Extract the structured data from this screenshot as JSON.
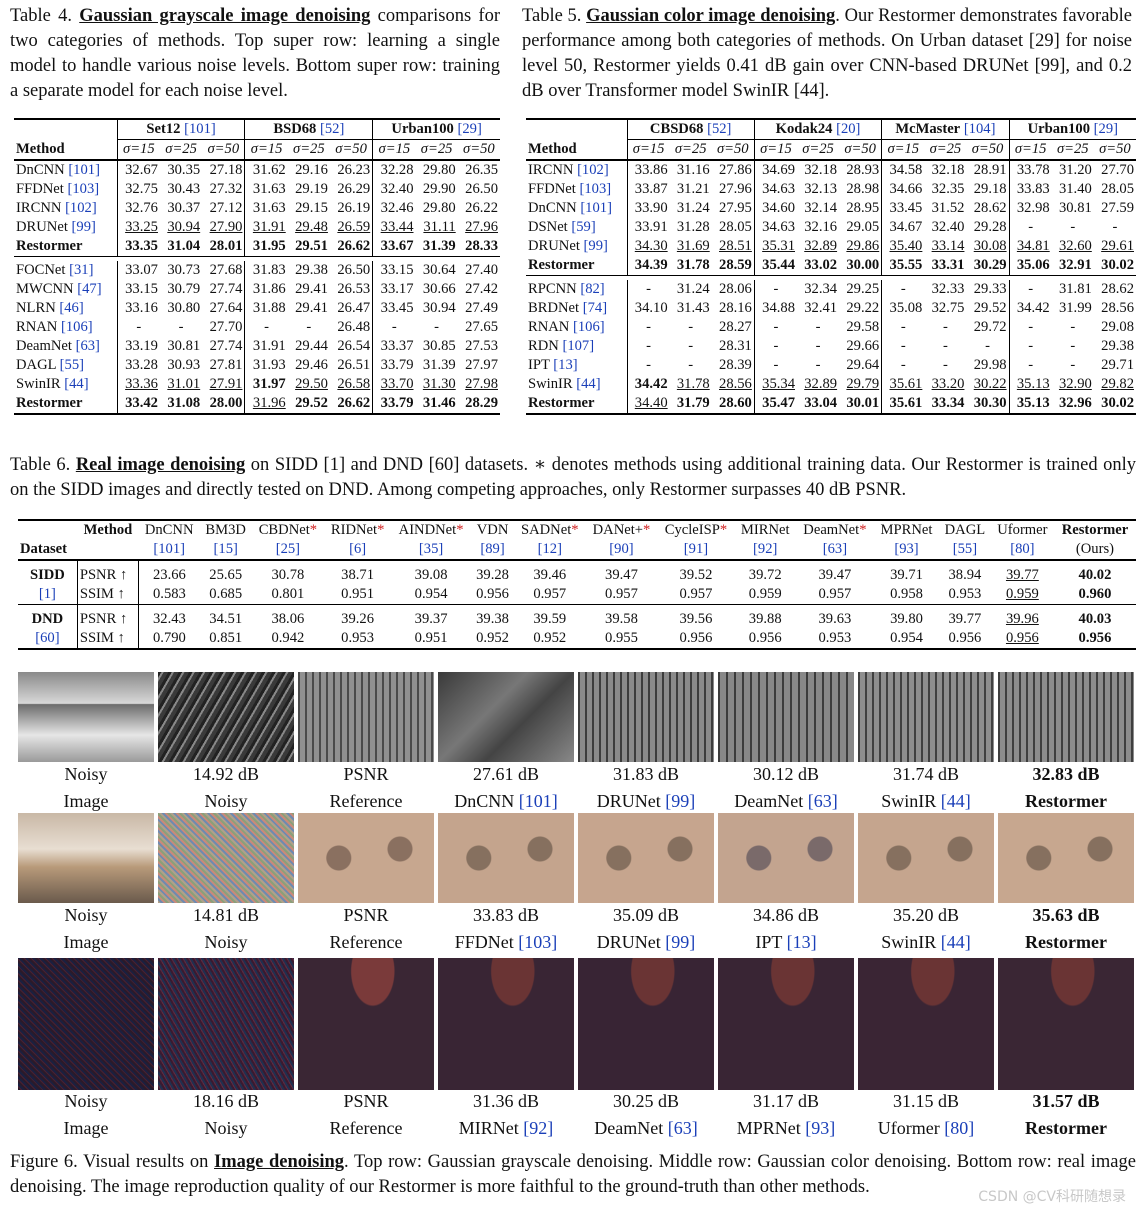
{
  "table4": {
    "caption_label": "Table 4.",
    "caption_title": "Gaussian grayscale image denoising",
    "caption_rest": "comparisons for two categories of methods. Top super row: learning a single model to handle various noise levels. Bottom super row: training a separate model for each noise level.",
    "datasets": [
      {
        "name": "Set12",
        "ref": "[101]"
      },
      {
        "name": "BSD68",
        "ref": "[52]"
      },
      {
        "name": "Urban100",
        "ref": "[29]"
      }
    ],
    "method_header": "Method",
    "sigmas": [
      "σ=15",
      "σ=25",
      "σ=50"
    ],
    "group1": [
      {
        "m": "DnCNN",
        "ref": "[101]",
        "v": [
          "32.67",
          "30.35",
          "27.18",
          "31.62",
          "29.16",
          "26.23",
          "32.28",
          "29.80",
          "26.35"
        ]
      },
      {
        "m": "FFDNet",
        "ref": "[103]",
        "v": [
          "32.75",
          "30.43",
          "27.32",
          "31.63",
          "29.19",
          "26.29",
          "32.40",
          "29.90",
          "26.50"
        ]
      },
      {
        "m": "IRCNN",
        "ref": "[102]",
        "v": [
          "32.76",
          "30.37",
          "27.12",
          "31.63",
          "29.15",
          "26.19",
          "32.46",
          "29.80",
          "26.22"
        ]
      },
      {
        "m": "DRUNet",
        "ref": "[99]",
        "v": [
          "33.25",
          "30.94",
          "27.90",
          "31.91",
          "29.48",
          "26.59",
          "33.44",
          "31.11",
          "27.96"
        ],
        "u": [
          0,
          1,
          2,
          3,
          4,
          5,
          6,
          7,
          8
        ]
      },
      {
        "m": "Restormer",
        "ref": "",
        "v": [
          "33.35",
          "31.04",
          "28.01",
          "31.95",
          "29.51",
          "26.62",
          "33.67",
          "31.39",
          "28.33"
        ],
        "b": [
          0,
          1,
          2,
          3,
          4,
          5,
          6,
          7,
          8
        ]
      }
    ],
    "group2": [
      {
        "m": "FOCNet",
        "ref": "[31]",
        "v": [
          "33.07",
          "30.73",
          "27.68",
          "31.83",
          "29.38",
          "26.50",
          "33.15",
          "30.64",
          "27.40"
        ]
      },
      {
        "m": "MWCNN",
        "ref": "[47]",
        "v": [
          "33.15",
          "30.79",
          "27.74",
          "31.86",
          "29.41",
          "26.53",
          "33.17",
          "30.66",
          "27.42"
        ]
      },
      {
        "m": "NLRN",
        "ref": "[46]",
        "v": [
          "33.16",
          "30.80",
          "27.64",
          "31.88",
          "29.41",
          "26.47",
          "33.45",
          "30.94",
          "27.49"
        ]
      },
      {
        "m": "RNAN",
        "ref": "[106]",
        "v": [
          "-",
          "-",
          "27.70",
          "-",
          "-",
          "26.48",
          "-",
          "-",
          "27.65"
        ]
      },
      {
        "m": "DeamNet",
        "ref": "[63]",
        "v": [
          "33.19",
          "30.81",
          "27.74",
          "31.91",
          "29.44",
          "26.54",
          "33.37",
          "30.85",
          "27.53"
        ]
      },
      {
        "m": "DAGL",
        "ref": "[55]",
        "v": [
          "33.28",
          "30.93",
          "27.81",
          "31.93",
          "29.46",
          "26.51",
          "33.79",
          "31.39",
          "27.97"
        ]
      },
      {
        "m": "SwinIR",
        "ref": "[44]",
        "v": [
          "33.36",
          "31.01",
          "27.91",
          "31.97",
          "29.50",
          "26.58",
          "33.70",
          "31.30",
          "27.98"
        ],
        "u": [
          0,
          1,
          2,
          4,
          5,
          6,
          7,
          8
        ],
        "b": [
          3
        ]
      },
      {
        "m": "Restormer",
        "ref": "",
        "v": [
          "33.42",
          "31.08",
          "28.00",
          "31.96",
          "29.52",
          "26.62",
          "33.79",
          "31.46",
          "28.29"
        ],
        "b": [
          0,
          1,
          2,
          4,
          5,
          6,
          7,
          8
        ],
        "u": [
          3
        ]
      }
    ]
  },
  "table5": {
    "caption_label": "Table 5.",
    "caption_title": "Gaussian color image denoising",
    "caption_rest": ". Our Restormer demonstrates favorable performance among both categories of methods. On Urban dataset [29] for noise level 50, Restormer yields 0.41 dB gain over CNN-based DRUNet [99], and 0.2 dB over Transformer model SwinIR [44].",
    "datasets": [
      {
        "name": "CBSD68",
        "ref": "[52]"
      },
      {
        "name": "Kodak24",
        "ref": "[20]"
      },
      {
        "name": "McMaster",
        "ref": "[104]"
      },
      {
        "name": "Urban100",
        "ref": "[29]"
      }
    ],
    "method_header": "Method",
    "sigmas": [
      "σ=15",
      "σ=25",
      "σ=50"
    ],
    "group1": [
      {
        "m": "IRCNN",
        "ref": "[102]",
        "v": [
          "33.86",
          "31.16",
          "27.86",
          "34.69",
          "32.18",
          "28.93",
          "34.58",
          "32.18",
          "28.91",
          "33.78",
          "31.20",
          "27.70"
        ]
      },
      {
        "m": "FFDNet",
        "ref": "[103]",
        "v": [
          "33.87",
          "31.21",
          "27.96",
          "34.63",
          "32.13",
          "28.98",
          "34.66",
          "32.35",
          "29.18",
          "33.83",
          "31.40",
          "28.05"
        ]
      },
      {
        "m": "DnCNN",
        "ref": "[101]",
        "v": [
          "33.90",
          "31.24",
          "27.95",
          "34.60",
          "32.14",
          "28.95",
          "33.45",
          "31.52",
          "28.62",
          "32.98",
          "30.81",
          "27.59"
        ]
      },
      {
        "m": "DSNet",
        "ref": "[59]",
        "v": [
          "33.91",
          "31.28",
          "28.05",
          "34.63",
          "32.16",
          "29.05",
          "34.67",
          "32.40",
          "29.28",
          "-",
          "-",
          "-"
        ]
      },
      {
        "m": "DRUNet",
        "ref": "[99]",
        "v": [
          "34.30",
          "31.69",
          "28.51",
          "35.31",
          "32.89",
          "29.86",
          "35.40",
          "33.14",
          "30.08",
          "34.81",
          "32.60",
          "29.61"
        ],
        "u": [
          0,
          1,
          2,
          3,
          4,
          5,
          6,
          7,
          8,
          9,
          10,
          11
        ]
      },
      {
        "m": "Restormer",
        "ref": "",
        "v": [
          "34.39",
          "31.78",
          "28.59",
          "35.44",
          "33.02",
          "30.00",
          "35.55",
          "33.31",
          "30.29",
          "35.06",
          "32.91",
          "30.02"
        ],
        "b": [
          0,
          1,
          2,
          3,
          4,
          5,
          6,
          7,
          8,
          9,
          10,
          11
        ]
      }
    ],
    "group2": [
      {
        "m": "RPCNN",
        "ref": "[82]",
        "v": [
          "-",
          "31.24",
          "28.06",
          "-",
          "32.34",
          "29.25",
          "-",
          "32.33",
          "29.33",
          "-",
          "31.81",
          "28.62"
        ]
      },
      {
        "m": "BRDNet",
        "ref": "[74]",
        "v": [
          "34.10",
          "31.43",
          "28.16",
          "34.88",
          "32.41",
          "29.22",
          "35.08",
          "32.75",
          "29.52",
          "34.42",
          "31.99",
          "28.56"
        ]
      },
      {
        "m": "RNAN",
        "ref": "[106]",
        "v": [
          "-",
          "-",
          "28.27",
          "-",
          "-",
          "29.58",
          "-",
          "-",
          "29.72",
          "-",
          "-",
          "29.08"
        ]
      },
      {
        "m": "RDN",
        "ref": "[107]",
        "v": [
          "-",
          "-",
          "28.31",
          "-",
          "-",
          "29.66",
          "-",
          "-",
          "-",
          "-",
          "-",
          "29.38"
        ]
      },
      {
        "m": "IPT",
        "ref": "[13]",
        "v": [
          "-",
          "-",
          "28.39",
          "-",
          "-",
          "29.64",
          "-",
          "-",
          "29.98",
          "-",
          "-",
          "29.71"
        ]
      },
      {
        "m": "SwinIR",
        "ref": "[44]",
        "v": [
          "34.42",
          "31.78",
          "28.56",
          "35.34",
          "32.89",
          "29.79",
          "35.61",
          "33.20",
          "30.22",
          "35.13",
          "32.90",
          "29.82"
        ],
        "b": [
          0
        ],
        "u": [
          1,
          2,
          3,
          4,
          5,
          6,
          7,
          8,
          9,
          10,
          11
        ]
      },
      {
        "m": "Restormer",
        "ref": "",
        "v": [
          "34.40",
          "31.79",
          "28.60",
          "35.47",
          "33.04",
          "30.01",
          "35.61",
          "33.34",
          "30.30",
          "35.13",
          "32.96",
          "30.02"
        ],
        "u": [
          0
        ],
        "b": [
          1,
          2,
          3,
          4,
          5,
          6,
          7,
          8,
          9,
          10,
          11
        ]
      }
    ]
  },
  "table6": {
    "caption_label": "Table 6.",
    "caption_title": "Real image denoising",
    "caption_rest": "on SIDD [1] and DND [60] datasets. ∗ denotes methods using additional training data. Our Restormer is trained only on the SIDD images and directly tested on DND. Among competing approaches, only Restormer surpasses 40 dB PSNR.",
    "dataset_header": "Dataset",
    "method_header": "Method",
    "methods": [
      {
        "n": "DnCNN",
        "r": "[101]",
        "s": ""
      },
      {
        "n": "BM3D",
        "r": "[15]",
        "s": ""
      },
      {
        "n": "CBDNet",
        "r": "[25]",
        "s": "*"
      },
      {
        "n": "RIDNet",
        "r": "[6]",
        "s": "*"
      },
      {
        "n": "AINDNet",
        "r": "[35]",
        "s": "*"
      },
      {
        "n": "VDN",
        "r": "[89]",
        "s": ""
      },
      {
        "n": "SADNet",
        "r": "[12]",
        "s": "*"
      },
      {
        "n": "DANet+",
        "r": "[90]",
        "s": "*"
      },
      {
        "n": "CycleISP",
        "r": "[91]",
        "s": "*"
      },
      {
        "n": "MIRNet",
        "r": "[92]",
        "s": ""
      },
      {
        "n": "DeamNet",
        "r": "[63]",
        "s": "*"
      },
      {
        "n": "MPRNet",
        "r": "[93]",
        "s": ""
      },
      {
        "n": "DAGL",
        "r": "[55]",
        "s": ""
      },
      {
        "n": "Uformer",
        "r": "[80]",
        "s": ""
      },
      {
        "n": "Restormer",
        "r": "(Ours)",
        "s": ""
      }
    ],
    "rows": [
      {
        "ds": "SIDD",
        "dsref": "[1]",
        "metrics": [
          {
            "k": "PSNR ↑",
            "v": [
              "23.66",
              "25.65",
              "30.78",
              "38.71",
              "39.08",
              "39.28",
              "39.46",
              "39.47",
              "39.52",
              "39.72",
              "39.47",
              "39.71",
              "38.94",
              "39.77",
              "40.02"
            ]
          },
          {
            "k": "SSIM ↑",
            "v": [
              "0.583",
              "0.685",
              "0.801",
              "0.951",
              "0.954",
              "0.956",
              "0.957",
              "0.957",
              "0.957",
              "0.959",
              "0.957",
              "0.958",
              "0.953",
              "0.959",
              "0.960"
            ]
          }
        ]
      },
      {
        "ds": "DND",
        "dsref": "[60]",
        "metrics": [
          {
            "k": "PSNR ↑",
            "v": [
              "32.43",
              "34.51",
              "38.06",
              "39.26",
              "39.37",
              "39.38",
              "39.59",
              "39.58",
              "39.56",
              "39.88",
              "39.63",
              "39.80",
              "39.77",
              "39.96",
              "40.03"
            ]
          },
          {
            "k": "SSIM ↑",
            "v": [
              "0.790",
              "0.851",
              "0.942",
              "0.953",
              "0.951",
              "0.952",
              "0.952",
              "0.955",
              "0.956",
              "0.956",
              "0.953",
              "0.954",
              "0.956",
              "0.956",
              "0.956"
            ]
          }
        ]
      }
    ]
  },
  "figure6": {
    "rows": [
      {
        "labels": [
          [
            "Noisy",
            "Image"
          ],
          [
            "14.92 dB",
            "Noisy"
          ],
          [
            "PSNR",
            "Reference"
          ],
          [
            "27.61 dB",
            "DnCNN [101]"
          ],
          [
            "31.83 dB",
            "DRUNet [99]"
          ],
          [
            "30.12 dB",
            "DeamNet [63]"
          ],
          [
            "31.74 dB",
            "SwinIR [44]"
          ],
          [
            "32.83 dB",
            "Restormer"
          ]
        ]
      },
      {
        "labels": [
          [
            "Noisy",
            "Image"
          ],
          [
            "14.81 dB",
            "Noisy"
          ],
          [
            "PSNR",
            "Reference"
          ],
          [
            "33.83 dB",
            "FFDNet [103]"
          ],
          [
            "35.09 dB",
            "DRUNet [99]"
          ],
          [
            "34.86 dB",
            "IPT [13]"
          ],
          [
            "35.20 dB",
            "SwinIR [44]"
          ],
          [
            "35.63 dB",
            "Restormer"
          ]
        ]
      },
      {
        "labels": [
          [
            "Noisy",
            "Image"
          ],
          [
            "18.16 dB",
            "Noisy"
          ],
          [
            "PSNR",
            "Reference"
          ],
          [
            "31.36 dB",
            "MIRNet [92]"
          ],
          [
            "30.25 dB",
            "DeamNet [63]"
          ],
          [
            "31.17 dB",
            "MPRNet [93]"
          ],
          [
            "31.15 dB",
            "Uformer [80]"
          ],
          [
            "31.57 dB",
            "Restormer"
          ]
        ]
      }
    ],
    "caption_label": "Figure 6.",
    "caption_title": "Image denoising",
    "caption_pre": "Visual results on",
    "caption_rest": ". Top row: Gaussian grayscale denoising. Middle row: Gaussian color denoising. Bottom row: real image denoising. The image reproduction quality of our Restormer is more faithful to the ground-truth than other methods."
  },
  "watermark": "CSDN @CV科研随想录"
}
